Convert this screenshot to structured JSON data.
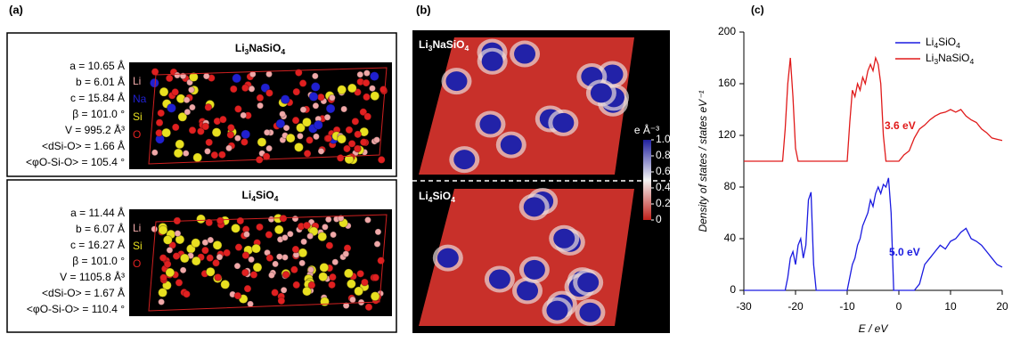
{
  "panel_a": {
    "label": "(a)",
    "structures": [
      {
        "formula": "Li3NaSiO4",
        "params": [
          "a = 10.65 Å",
          "b = 6.01 Å",
          "c = 15.84 Å",
          "β = 101.0 °",
          "V = 995.2 Å³",
          "<dSi-O> = 1.66 Å",
          "<φO-Si-O> = 105.4 °"
        ],
        "elements": [
          {
            "name": "Li",
            "color": "#f0a8a8"
          },
          {
            "name": "Na",
            "color": "#2020d0"
          },
          {
            "name": "Si",
            "color": "#e8e020"
          },
          {
            "name": "O",
            "color": "#e02020"
          }
        ]
      },
      {
        "formula": "Li4SiO4",
        "params": [
          "a = 11.44 Å",
          "b = 6.07 Å",
          "c = 16.27 Å",
          "β = 101.0 °",
          "V = 1105.8 Å³",
          "<dSi-O> = 1.67 Å",
          "<φO-Si-O> = 110.4 °"
        ],
        "elements": [
          {
            "name": "Li",
            "color": "#f0a8a8"
          },
          {
            "name": "Si",
            "color": "#e8e020"
          },
          {
            "name": "O",
            "color": "#e02020"
          }
        ]
      }
    ]
  },
  "panel_b": {
    "label": "(b)",
    "maps": [
      "Li3NaSiO4",
      "Li4SiO4"
    ],
    "colorbar": {
      "unit": "e Å⁻³",
      "lim": [
        0,
        1
      ],
      "ticks": [
        {
          "value": 1,
          "label": "1.0"
        },
        0.8,
        0.6,
        0.4,
        0.2,
        0
      ]
    }
  },
  "chart_data": {
    "type": "line",
    "panel_label": "(c)",
    "x_label": "E / eV",
    "y_label": "Density of states / states eV⁻¹",
    "x": [
      -30,
      -25,
      -22.5,
      -22,
      -21.5,
      -21,
      -20.5,
      -20,
      -19.5,
      -19,
      -18.5,
      -18,
      -17.5,
      -17,
      -16.5,
      -16,
      -12,
      -10,
      -9.5,
      -9,
      -8.5,
      -8,
      -7.5,
      -7,
      -6.5,
      -6,
      -5.5,
      -5,
      -4.5,
      -4,
      -3.5,
      -3,
      -2.5,
      -2,
      -1.5,
      -1,
      0,
      1,
      2,
      3,
      4,
      5,
      6,
      7,
      8,
      9,
      10,
      11,
      12,
      13,
      14,
      15,
      16,
      17,
      18,
      19,
      20
    ],
    "series": [
      {
        "name": "Li4SiO4",
        "color": "#1a1ae0",
        "values": [
          0,
          0,
          0,
          0,
          10,
          25,
          30,
          20,
          35,
          40,
          25,
          35,
          70,
          76,
          20,
          0,
          0,
          0,
          10,
          20,
          25,
          35,
          40,
          50,
          55,
          60,
          70,
          65,
          75,
          80,
          75,
          82,
          80,
          87,
          60,
          0,
          0,
          0,
          0,
          0,
          5,
          20,
          25,
          30,
          35,
          32,
          38,
          40,
          45,
          48,
          40,
          38,
          35,
          30,
          25,
          20,
          18
        ]
      },
      {
        "name": "Li3NaSiO4",
        "color": "#e01a1a",
        "values": [
          100,
          100,
          100,
          125,
          160,
          180,
          150,
          110,
          100,
          100,
          100,
          100,
          100,
          100,
          100,
          100,
          100,
          100,
          130,
          155,
          150,
          160,
          155,
          165,
          160,
          170,
          175,
          170,
          180,
          175,
          160,
          120,
          100,
          100,
          100,
          100,
          100,
          105,
          108,
          118,
          125,
          128,
          132,
          135,
          137,
          138,
          140,
          138,
          140,
          135,
          132,
          130,
          125,
          122,
          118,
          117,
          116
        ]
      }
    ],
    "annotations": [
      {
        "text": "3.6 eV",
        "color": "#e01a1a"
      },
      {
        "text": "5.0 eV",
        "color": "#1a1ae0"
      }
    ],
    "xlim": [
      -30,
      20
    ],
    "xticks": [
      -30,
      -20,
      -10,
      0,
      10,
      20
    ],
    "ylim": [
      0,
      200
    ],
    "yticks": [
      0,
      40,
      80,
      120,
      160,
      200
    ],
    "legend": "upper right"
  }
}
